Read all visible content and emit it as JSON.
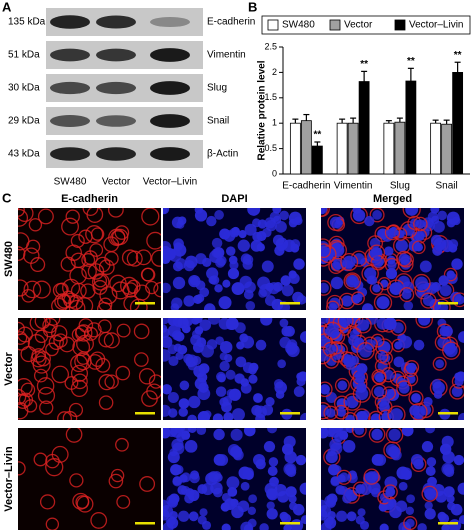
{
  "panel_labels": [
    "A",
    "B",
    "C"
  ],
  "blot": {
    "rows": [
      {
        "size": "135 kDa",
        "protein": "E-cadherin"
      },
      {
        "size": "51 kDa",
        "protein": "Vimentin"
      },
      {
        "size": "30 kDa",
        "protein": "Slug"
      },
      {
        "size": "29 kDa",
        "protein": "Snail"
      },
      {
        "size": "43 kDa",
        "protein": "β-Actin"
      }
    ],
    "lanes": [
      "SW480",
      "Vector",
      "Vector–Livin"
    ]
  },
  "microscopy": {
    "columns": [
      "E-cadherin",
      "DAPI",
      "Merged"
    ],
    "rows": [
      "SW480",
      "Vector",
      "Vector–Livin"
    ]
  },
  "chart_data": {
    "type": "bar",
    "y_label": "Relative protein level",
    "categories": [
      "E-cadherin",
      "Vimentin",
      "Slug",
      "Snail"
    ],
    "series": [
      {
        "name": "SW480",
        "color": "#ffffff",
        "values": [
          1.0,
          1.0,
          1.0,
          1.0
        ],
        "errors": [
          0.08,
          0.08,
          0.05,
          0.06
        ]
      },
      {
        "name": "Vector",
        "color": "#a0a0a0",
        "values": [
          1.05,
          1.0,
          1.02,
          0.98
        ],
        "errors": [
          0.12,
          0.1,
          0.08,
          0.08
        ]
      },
      {
        "name": "Vector–Livin",
        "color": "#000000",
        "values": [
          0.55,
          1.82,
          1.83,
          2.0
        ],
        "errors": [
          0.08,
          0.2,
          0.25,
          0.2
        ]
      }
    ],
    "annotations": [
      "**",
      "**",
      "**",
      "**"
    ],
    "ylim": [
      0,
      2.5
    ],
    "yticks": [
      0,
      0.5,
      1.0,
      1.5,
      2.0,
      2.5
    ],
    "yticks_labels": null
  }
}
